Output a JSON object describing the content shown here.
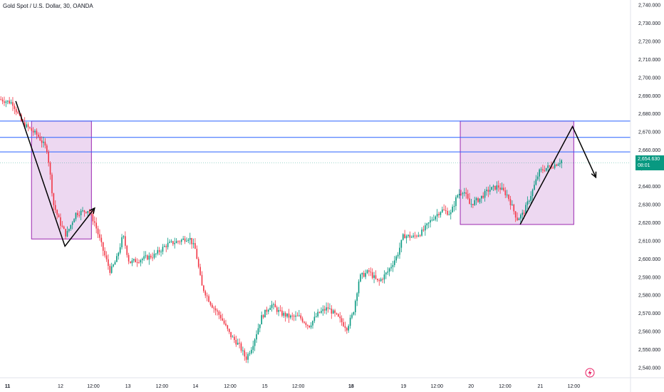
{
  "chart_data": {
    "type": "candlestick",
    "title": "Gold Spot / U.S. Dollar, 30, OANDA",
    "ylim": [
      2535,
      2745
    ],
    "y_ticks": [
      "2,740.000",
      "2,730.000",
      "2,720.000",
      "2,710.000",
      "2,700.000",
      "2,690.000",
      "2,680.000",
      "2,670.000",
      "2,660.000",
      "2,650.000",
      "2,640.000",
      "2,630.000",
      "2,620.000",
      "2,610.000",
      "2,600.000",
      "2,590.000",
      "2,580.000",
      "2,570.000",
      "2,560.000",
      "2,550.000",
      "2,540.000"
    ],
    "y_tick_values": [
      2740,
      2730,
      2720,
      2710,
      2700,
      2690,
      2680,
      2670,
      2660,
      2650,
      2640,
      2630,
      2620,
      2610,
      2600,
      2590,
      2580,
      2570,
      2560,
      2550,
      2540
    ],
    "x_ticks": [
      {
        "label": "11",
        "bold": true,
        "t": 0.012
      },
      {
        "label": "12",
        "bold": false,
        "t": 0.096
      },
      {
        "label": "12:00",
        "bold": false,
        "t": 0.148
      },
      {
        "label": "13",
        "bold": false,
        "t": 0.203
      },
      {
        "label": "12:00",
        "bold": false,
        "t": 0.257
      },
      {
        "label": "14",
        "bold": false,
        "t": 0.31
      },
      {
        "label": "12:00",
        "bold": false,
        "t": 0.365
      },
      {
        "label": "15",
        "bold": false,
        "t": 0.42
      },
      {
        "label": "12:00",
        "bold": false,
        "t": 0.473
      },
      {
        "label": "18",
        "bold": true,
        "t": 0.557
      },
      {
        "label": "19",
        "bold": false,
        "t": 0.64
      },
      {
        "label": "12:00",
        "bold": false,
        "t": 0.693
      },
      {
        "label": "20",
        "bold": false,
        "t": 0.747
      },
      {
        "label": "12:00",
        "bold": false,
        "t": 0.801
      },
      {
        "label": "21",
        "bold": false,
        "t": 0.857
      },
      {
        "label": "12:00",
        "bold": false,
        "t": 0.91
      }
    ],
    "current_price": {
      "value": 2654.63,
      "label": "2,654.630",
      "countdown": "08:01"
    },
    "price_path": [
      [
        0.0,
        2688
      ],
      [
        0.02,
        2686
      ],
      [
        0.035,
        2675
      ],
      [
        0.06,
        2668
      ],
      [
        0.075,
        2660
      ],
      [
        0.085,
        2630
      ],
      [
        0.095,
        2620
      ],
      [
        0.105,
        2613
      ],
      [
        0.12,
        2625
      ],
      [
        0.14,
        2627
      ],
      [
        0.15,
        2620
      ],
      [
        0.165,
        2603
      ],
      [
        0.175,
        2593
      ],
      [
        0.185,
        2600
      ],
      [
        0.195,
        2613
      ],
      [
        0.205,
        2598
      ],
      [
        0.225,
        2600
      ],
      [
        0.245,
        2602
      ],
      [
        0.265,
        2608
      ],
      [
        0.285,
        2610
      ],
      [
        0.3,
        2612
      ],
      [
        0.31,
        2605
      ],
      [
        0.32,
        2585
      ],
      [
        0.335,
        2575
      ],
      [
        0.35,
        2568
      ],
      [
        0.365,
        2558
      ],
      [
        0.38,
        2552
      ],
      [
        0.39,
        2545
      ],
      [
        0.4,
        2552
      ],
      [
        0.415,
        2568
      ],
      [
        0.43,
        2575
      ],
      [
        0.445,
        2570
      ],
      [
        0.46,
        2568
      ],
      [
        0.475,
        2568
      ],
      [
        0.49,
        2563
      ],
      [
        0.505,
        2570
      ],
      [
        0.52,
        2573
      ],
      [
        0.535,
        2568
      ],
      [
        0.55,
        2562
      ],
      [
        0.56,
        2570
      ],
      [
        0.57,
        2590
      ],
      [
        0.585,
        2593
      ],
      [
        0.6,
        2587
      ],
      [
        0.615,
        2593
      ],
      [
        0.63,
        2602
      ],
      [
        0.64,
        2613
      ],
      [
        0.655,
        2612
      ],
      [
        0.67,
        2615
      ],
      [
        0.685,
        2622
      ],
      [
        0.7,
        2627
      ],
      [
        0.715,
        2625
      ],
      [
        0.725,
        2635
      ],
      [
        0.735,
        2638
      ],
      [
        0.745,
        2630
      ],
      [
        0.76,
        2633
      ],
      [
        0.775,
        2638
      ],
      [
        0.79,
        2640
      ],
      [
        0.805,
        2635
      ],
      [
        0.82,
        2622
      ],
      [
        0.83,
        2625
      ],
      [
        0.845,
        2638
      ],
      [
        0.855,
        2648
      ],
      [
        0.865,
        2650
      ],
      [
        0.88,
        2652
      ],
      [
        0.892,
        2654.63
      ]
    ],
    "horizontal_levels": [
      2676,
      2667,
      2659
    ],
    "current_line": 2653,
    "zones": [
      {
        "t0": 0.05,
        "t1": 0.145,
        "y0": 2611,
        "y1": 2676
      },
      {
        "t0": 0.73,
        "t1": 0.91,
        "y0": 2619,
        "y1": 2676
      }
    ],
    "drawings": [
      {
        "points": [
          [
            0.025,
            2687
          ],
          [
            0.103,
            2607
          ],
          [
            0.15,
            2628
          ]
        ]
      },
      {
        "points": [
          [
            0.825,
            2619
          ],
          [
            0.908,
            2673
          ],
          [
            0.945,
            2645
          ]
        ]
      }
    ],
    "up_color": "#089981",
    "down_color": "#f23645",
    "zone_fill": "#e1bee7",
    "zone_stroke": "#9c27b0",
    "level_color": "#2962ff",
    "grid": false
  },
  "ui": {
    "replay_icon": "lightning-icon"
  }
}
